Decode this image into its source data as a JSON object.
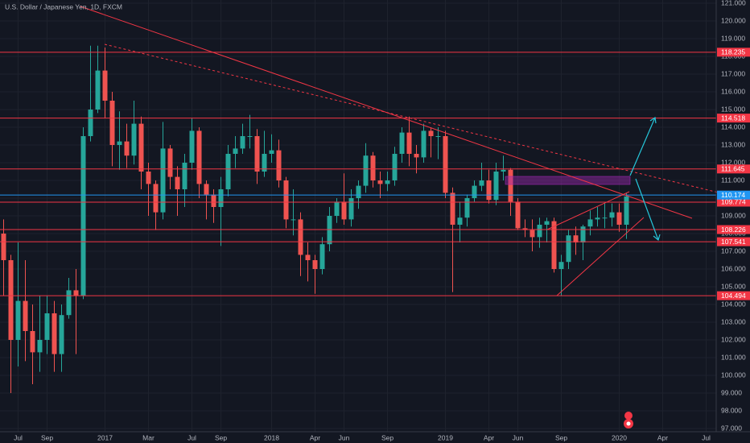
{
  "chart_data": {
    "type": "candlestick",
    "title": "U.S. Dollar / Japanese Yen, 1D, FXCM",
    "categories": [
      null,
      null,
      "Jul",
      null,
      null,
      null,
      "Sep",
      null,
      null,
      null,
      null,
      null,
      null,
      null,
      "2017",
      null,
      null,
      null,
      null,
      null,
      "Mar",
      null,
      null,
      null,
      null,
      null,
      "Jul",
      null,
      null,
      null,
      "Sep",
      null,
      null,
      null,
      null,
      null,
      null,
      "2018",
      null,
      null,
      null,
      null,
      null,
      "Apr",
      null,
      null,
      null,
      "Jun",
      null,
      null,
      null,
      null,
      null,
      "Sep",
      null,
      null,
      null,
      null,
      null,
      null,
      null,
      "2019",
      null,
      null,
      null,
      null,
      null,
      "Apr",
      null,
      null,
      null,
      "Jun",
      null,
      null,
      null,
      null,
      null,
      "Sep",
      null,
      null,
      null,
      null,
      null,
      null,
      null,
      "2020",
      null,
      null,
      null,
      null,
      null,
      "Apr",
      null,
      null,
      null,
      null,
      null,
      "Jul"
    ],
    "open": [
      108.0,
      106.5,
      102.0,
      104.2,
      102.5,
      101.3,
      102.0,
      103.5,
      101.2,
      103.4,
      104.8,
      104.5,
      113.5,
      115.0,
      117.2,
      115.5,
      113.0,
      113.2,
      112.4,
      114.2,
      111.5,
      110.8,
      109.2,
      112.8,
      111.2,
      110.5,
      112.0,
      113.8,
      110.8,
      110.2,
      109.5,
      110.5,
      112.5,
      112.8,
      113.5,
      113.5,
      111.5,
      112.5,
      112.7,
      111.0,
      108.8,
      108.8,
      106.8,
      106.5,
      106.0,
      107.4,
      109.0,
      109.8,
      108.8,
      110.0,
      110.7,
      112.4,
      111.0,
      110.8,
      111.0,
      112.5,
      113.7,
      112.5,
      112.3,
      113.8,
      113.5,
      113.5,
      110.3,
      108.5,
      108.9,
      110.0,
      110.7,
      111.0,
      109.9,
      111.5,
      111.6,
      109.8,
      108.3,
      108.2,
      107.8,
      108.5,
      108.7,
      106.0,
      106.4,
      107.9,
      107.5,
      108.4,
      108.8,
      108.9,
      108.9,
      109.2,
      108.5,
      null,
      null,
      null,
      null,
      null,
      null,
      null,
      null,
      null,
      null,
      null
    ],
    "high": [
      108.8,
      106.8,
      107.5,
      106.5,
      104.0,
      104.5,
      104.5,
      104.2,
      104.0,
      105.5,
      106.0,
      114.0,
      118.6,
      118.6,
      118.5,
      116.0,
      114.9,
      114.2,
      115.5,
      114.6,
      112.0,
      111.0,
      114.3,
      113.0,
      111.8,
      112.5,
      114.5,
      114.0,
      111.0,
      110.5,
      111.2,
      113.0,
      113.5,
      114.2,
      114.7,
      113.9,
      113.8,
      113.6,
      113.3,
      111.2,
      110.5,
      109.2,
      107.5,
      106.8,
      107.8,
      109.5,
      110.0,
      111.4,
      110.5,
      111.0,
      113.1,
      112.6,
      111.5,
      111.5,
      112.9,
      114.0,
      114.6,
      113.0,
      114.2,
      114.0,
      114.0,
      113.8,
      110.6,
      109.8,
      110.2,
      111.0,
      112.0,
      111.6,
      112.0,
      112.4,
      111.7,
      110.0,
      108.8,
      108.8,
      108.9,
      108.9,
      108.9,
      106.8,
      108.2,
      108.4,
      108.5,
      109.3,
      109.5,
      109.7,
      109.7,
      109.7,
      110.3,
      null,
      null,
      null,
      null,
      null,
      null,
      null,
      null,
      null,
      null,
      null
    ],
    "low": [
      104.5,
      99.0,
      100.5,
      100.8,
      99.5,
      100.2,
      101.2,
      100.2,
      100.2,
      103.2,
      101.2,
      104.3,
      113.2,
      114.8,
      114.5,
      111.8,
      111.6,
      111.7,
      111.9,
      110.5,
      109.0,
      108.2,
      108.8,
      110.5,
      109.0,
      109.5,
      111.6,
      110.0,
      108.8,
      108.6,
      107.3,
      110.1,
      111.7,
      112.5,
      112.8,
      110.8,
      111.2,
      112.0,
      110.6,
      108.3,
      107.9,
      105.6,
      105.3,
      104.6,
      105.7,
      107.0,
      108.6,
      108.5,
      108.4,
      109.4,
      110.3,
      110.6,
      110.0,
      110.4,
      110.7,
      112.0,
      111.8,
      111.4,
      112.0,
      112.3,
      112.2,
      110.0,
      104.7,
      107.5,
      108.4,
      109.8,
      110.4,
      109.7,
      109.6,
      111.0,
      109.0,
      108.2,
      107.8,
      107.0,
      107.2,
      107.5,
      105.8,
      104.5,
      106.0,
      106.8,
      106.5,
      107.9,
      108.4,
      108.3,
      108.4,
      108.1,
      107.7,
      null,
      null,
      null,
      null,
      null,
      null,
      null,
      null,
      null,
      null,
      null
    ],
    "close": [
      106.5,
      102.0,
      104.2,
      102.5,
      101.3,
      102.0,
      103.5,
      101.2,
      103.4,
      104.8,
      104.5,
      113.5,
      115.0,
      117.2,
      115.5,
      113.0,
      113.2,
      112.4,
      114.2,
      111.5,
      110.8,
      109.2,
      112.8,
      111.2,
      110.5,
      112.0,
      113.8,
      110.8,
      110.2,
      109.5,
      110.5,
      112.5,
      112.8,
      113.5,
      113.5,
      111.5,
      112.5,
      112.7,
      111.0,
      108.8,
      108.8,
      106.8,
      106.5,
      106.0,
      107.4,
      109.0,
      109.8,
      108.8,
      110.0,
      110.7,
      112.4,
      111.0,
      110.8,
      111.0,
      112.5,
      113.7,
      112.5,
      112.3,
      113.8,
      113.5,
      113.5,
      110.3,
      108.5,
      108.9,
      110.0,
      110.7,
      111.0,
      109.9,
      111.5,
      111.6,
      109.8,
      108.3,
      108.2,
      107.8,
      108.5,
      108.7,
      106.0,
      106.4,
      107.9,
      107.5,
      108.4,
      108.8,
      108.9,
      108.9,
      109.2,
      108.5,
      110.1,
      null,
      null,
      null,
      null,
      null,
      null,
      null,
      null,
      null,
      null,
      null
    ],
    "up_color": "#26a69a",
    "down_color": "#ef5350",
    "ylim": [
      97,
      121
    ],
    "yticks": [
      {
        "value": 97,
        "label": "97.000"
      },
      {
        "value": 98,
        "label": "98.000"
      },
      {
        "value": 99,
        "label": "99.000"
      },
      {
        "value": 100,
        "label": "100.000"
      },
      {
        "value": 101,
        "label": "101.000"
      },
      {
        "value": 102,
        "label": "102.000"
      },
      {
        "value": 103,
        "label": "103.000"
      },
      {
        "value": 104,
        "label": "104.000"
      },
      {
        "value": 105,
        "label": "105.000"
      },
      {
        "value": 106,
        "label": "106.000"
      },
      {
        "value": 107,
        "label": "107.000"
      },
      {
        "value": 108,
        "label": "108.000"
      },
      {
        "value": 109,
        "label": "109.000"
      },
      {
        "value": 110,
        "label": "110.000"
      },
      {
        "value": 111,
        "label": "111.000"
      },
      {
        "value": 112,
        "label": "112.000"
      },
      {
        "value": 113,
        "label": "113.000"
      },
      {
        "value": 114,
        "label": "114.000"
      },
      {
        "value": 115,
        "label": "115.000"
      },
      {
        "value": 116,
        "label": "116.000"
      },
      {
        "value": 117,
        "label": "117.000"
      },
      {
        "value": 118,
        "label": "118.000"
      },
      {
        "value": 119,
        "label": "119.000"
      },
      {
        "value": 120,
        "label": "120.000"
      },
      {
        "value": 121,
        "label": "121.000"
      }
    ],
    "grid": true,
    "levels": [
      118.235,
      114.518,
      111.645,
      109.774,
      108.226,
      107.541,
      104.494
    ],
    "level_color": "#f23645",
    "last_price": 110.174,
    "last_price_color": "#2196f3"
  }
}
